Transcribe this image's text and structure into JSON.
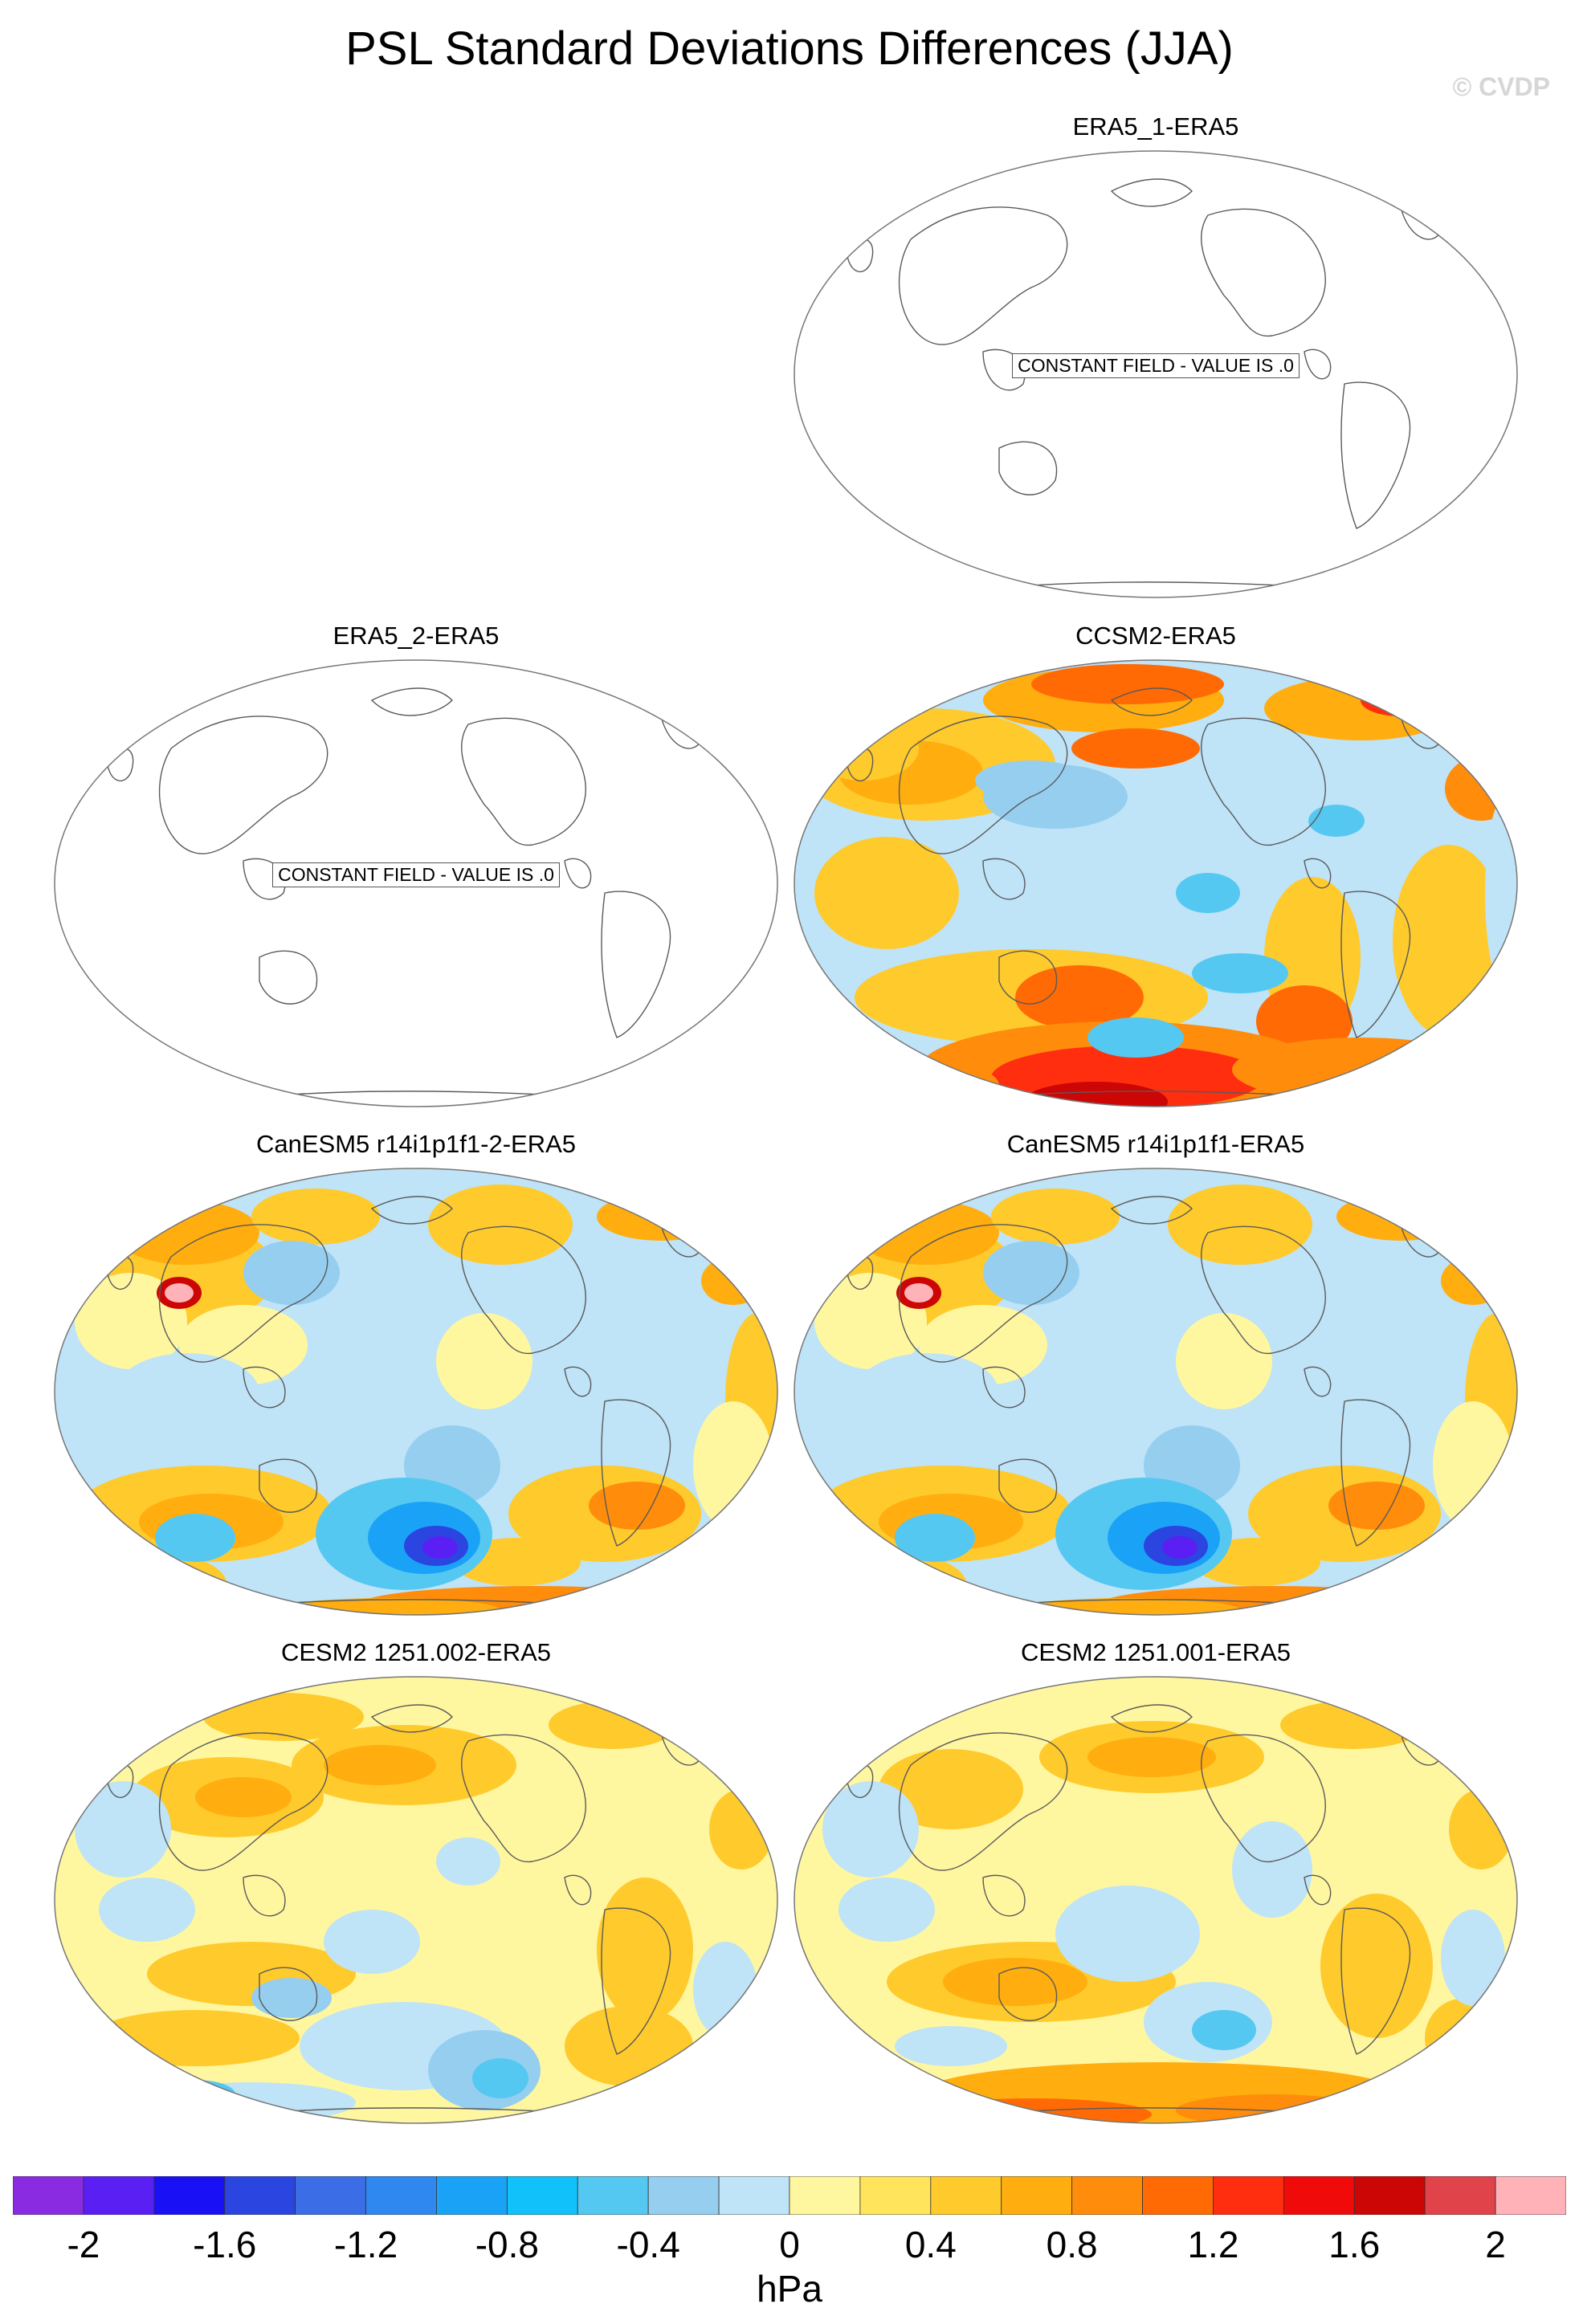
{
  "title": "PSL Standard Deviations Differences (JJA)",
  "watermark": "© CVDP",
  "constant_field_label": "CONSTANT FIELD - VALUE IS .0",
  "panels": [
    {
      "title": "ERA5_1-ERA5",
      "constant": true
    },
    {
      "title": "ERA5_2-ERA5",
      "constant": true
    },
    {
      "title": "CCSM2-ERA5",
      "constant": false,
      "pattern": "ccsm2"
    },
    {
      "title": "CanESM5 r14i1p1f1-2-ERA5",
      "constant": false,
      "pattern": "canesm"
    },
    {
      "title": "CanESM5 r14i1p1f1-ERA5",
      "constant": false,
      "pattern": "canesm"
    },
    {
      "title": "CESM2 1251.002-ERA5",
      "constant": false,
      "pattern": "cesm2a"
    },
    {
      "title": "CESM2 1251.001-ERA5",
      "constant": false,
      "pattern": "cesm2b"
    }
  ],
  "colorbar": {
    "unit": "hPa",
    "levels": [
      -2.2,
      -2,
      -1.8,
      -1.6,
      -1.4,
      -1.2,
      -1,
      -0.8,
      -0.6,
      -0.4,
      -0.2,
      0,
      0.2,
      0.4,
      0.6,
      0.8,
      1,
      1.2,
      1.4,
      1.6,
      1.8,
      2,
      2.2
    ],
    "tick_labels": [
      "-2",
      "-1.6",
      "-1.2",
      "-0.8",
      "-0.4",
      "0",
      "0.4",
      "0.8",
      "1.2",
      "1.6",
      "2"
    ],
    "colors": [
      "#8a2be2",
      "#5a1ff2",
      "#1a10f5",
      "#2a45e0",
      "#3a6de6",
      "#2f88f0",
      "#1aa3f6",
      "#10c1fa",
      "#55c8f2",
      "#96cef0",
      "#bfe3f7",
      "#fff7a0",
      "#ffe45c",
      "#ffca2c",
      "#ffad0f",
      "#ff8c0a",
      "#ff6a05",
      "#ff2e0e",
      "#f00a0a",
      "#cc0505",
      "#e0434a",
      "#ffb3b8"
    ]
  }
}
